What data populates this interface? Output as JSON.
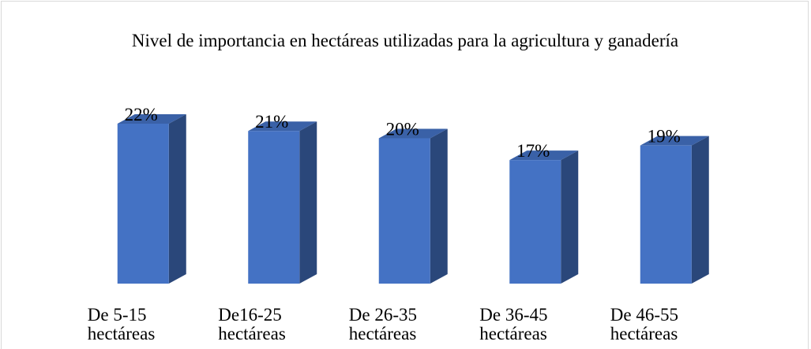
{
  "chart_data": {
    "type": "bar3d",
    "title": "Nivel de importancia en hectáreas utilizadas para la agricultura y ganadería",
    "categories": [
      "De 5-15 hectáreas",
      "De16-25 hectáreas",
      "De 26-35 hectáreas",
      "De 36-45 hectáreas",
      "De 46-55 hectáreas"
    ],
    "values": [
      22,
      21,
      20,
      17,
      19
    ],
    "value_labels": [
      "22%",
      "21%",
      "20%",
      "17%",
      "19%"
    ],
    "color": "#4472c4"
  }
}
